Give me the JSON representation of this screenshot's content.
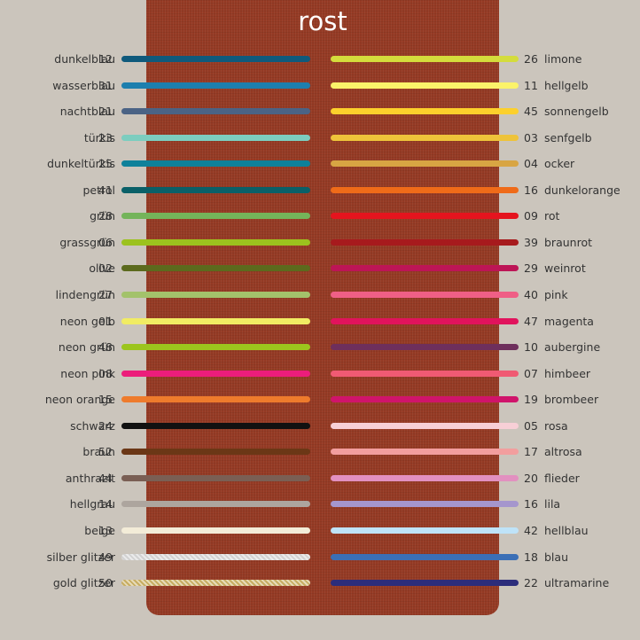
{
  "title": "rost",
  "panel_color": "#953a24",
  "left": [
    {
      "name": "dunkelblau",
      "code": "12",
      "color": "#0f5a7c"
    },
    {
      "name": "wasserblau",
      "code": "31",
      "color": "#1d7fae"
    },
    {
      "name": "nachtblau",
      "code": "21",
      "color": "#4b6385"
    },
    {
      "name": "türkis",
      "code": "23",
      "color": "#7ccdbf"
    },
    {
      "name": "dunkeltürkis",
      "code": "25",
      "color": "#0e819a"
    },
    {
      "name": "petrol",
      "code": "41",
      "color": "#0a6068"
    },
    {
      "name": "grün",
      "code": "28",
      "color": "#74b45a"
    },
    {
      "name": "grassgrün",
      "code": "06",
      "color": "#9cc21e"
    },
    {
      "name": "olive",
      "code": "02",
      "color": "#5c6a1d"
    },
    {
      "name": "lindengrün",
      "code": "27",
      "color": "#a3c26b"
    },
    {
      "name": "neon gelb",
      "code": "01",
      "color": "#f1ec63"
    },
    {
      "name": "neon grün",
      "code": "48",
      "color": "#9cc51d"
    },
    {
      "name": "neon pink",
      "code": "08",
      "color": "#ec1d7b"
    },
    {
      "name": "neon orange",
      "code": "15",
      "color": "#ee7b2c"
    },
    {
      "name": "schwarz",
      "code": "24",
      "color": "#111111"
    },
    {
      "name": "braun",
      "code": "52",
      "color": "#6b3716"
    },
    {
      "name": "anthrazit",
      "code": "44",
      "color": "#7a5f54"
    },
    {
      "name": "hellgrau",
      "code": "14",
      "color": "#ada59e"
    },
    {
      "name": "beige",
      "code": "13",
      "color": "#f3ecd8"
    },
    {
      "name": "silber glitzer",
      "code": "49",
      "color": "#d2d2d2"
    },
    {
      "name": "gold glitzer",
      "code": "50",
      "color": "#c7ad62"
    }
  ],
  "right": [
    {
      "code": "26",
      "name": "limone",
      "color": "#d4dc3c"
    },
    {
      "code": "11",
      "name": "hellgelb",
      "color": "#fbf36a"
    },
    {
      "code": "45",
      "name": "sonnengelb",
      "color": "#fcd02c"
    },
    {
      "code": "03",
      "name": "senfgelb",
      "color": "#eec33a"
    },
    {
      "code": "04",
      "name": "ocker",
      "color": "#d8a543"
    },
    {
      "code": "16",
      "name": "dunkelorange",
      "color": "#ef6b19"
    },
    {
      "code": "09",
      "name": "rot",
      "color": "#e5141e"
    },
    {
      "code": "39",
      "name": "braunrot",
      "color": "#a71a1d"
    },
    {
      "code": "29",
      "name": "weinrot",
      "color": "#bd1556"
    },
    {
      "code": "40",
      "name": "pink",
      "color": "#ef5f86"
    },
    {
      "code": "47",
      "name": "magenta",
      "color": "#e1135c"
    },
    {
      "code": "10",
      "name": "aubergine",
      "color": "#6e2f5c"
    },
    {
      "code": "07",
      "name": "himbeer",
      "color": "#f05a73"
    },
    {
      "code": "19",
      "name": "brombeer",
      "color": "#d0146b"
    },
    {
      "code": "05",
      "name": "rosa",
      "color": "#f7cfd6"
    },
    {
      "code": "17",
      "name": "altrosa",
      "color": "#f29e9e"
    },
    {
      "code": "20",
      "name": "flieder",
      "color": "#e290c0"
    },
    {
      "code": "16",
      "name": "lila",
      "color": "#a596cd"
    },
    {
      "code": "42",
      "name": "hellblau",
      "color": "#bfe3f8"
    },
    {
      "code": "18",
      "name": "blau",
      "color": "#3b6fb6"
    },
    {
      "code": "22",
      "name": "ultramarine",
      "color": "#2c2d7b"
    }
  ]
}
